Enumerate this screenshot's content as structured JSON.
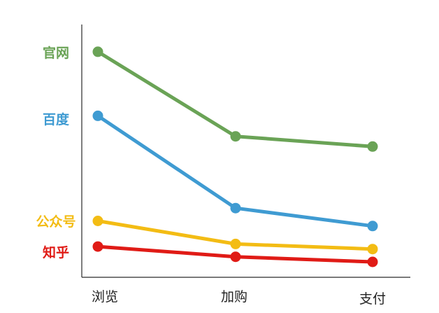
{
  "chart_data": {
    "type": "line",
    "categories": [
      "浏览",
      "加购",
      "支付"
    ],
    "ylim": [
      0,
      100
    ],
    "grid": false,
    "series": [
      {
        "name": "官网",
        "color": "#6AA356",
        "values": [
          88,
          55,
          51
        ]
      },
      {
        "name": "百度",
        "color": "#3F9BD2",
        "values": [
          63,
          27,
          20
        ]
      },
      {
        "name": "公众号",
        "color": "#F3BC14",
        "values": [
          22,
          13,
          11
        ]
      },
      {
        "name": "知乎",
        "color": "#E01B16",
        "values": [
          12,
          8,
          6
        ]
      }
    ]
  }
}
